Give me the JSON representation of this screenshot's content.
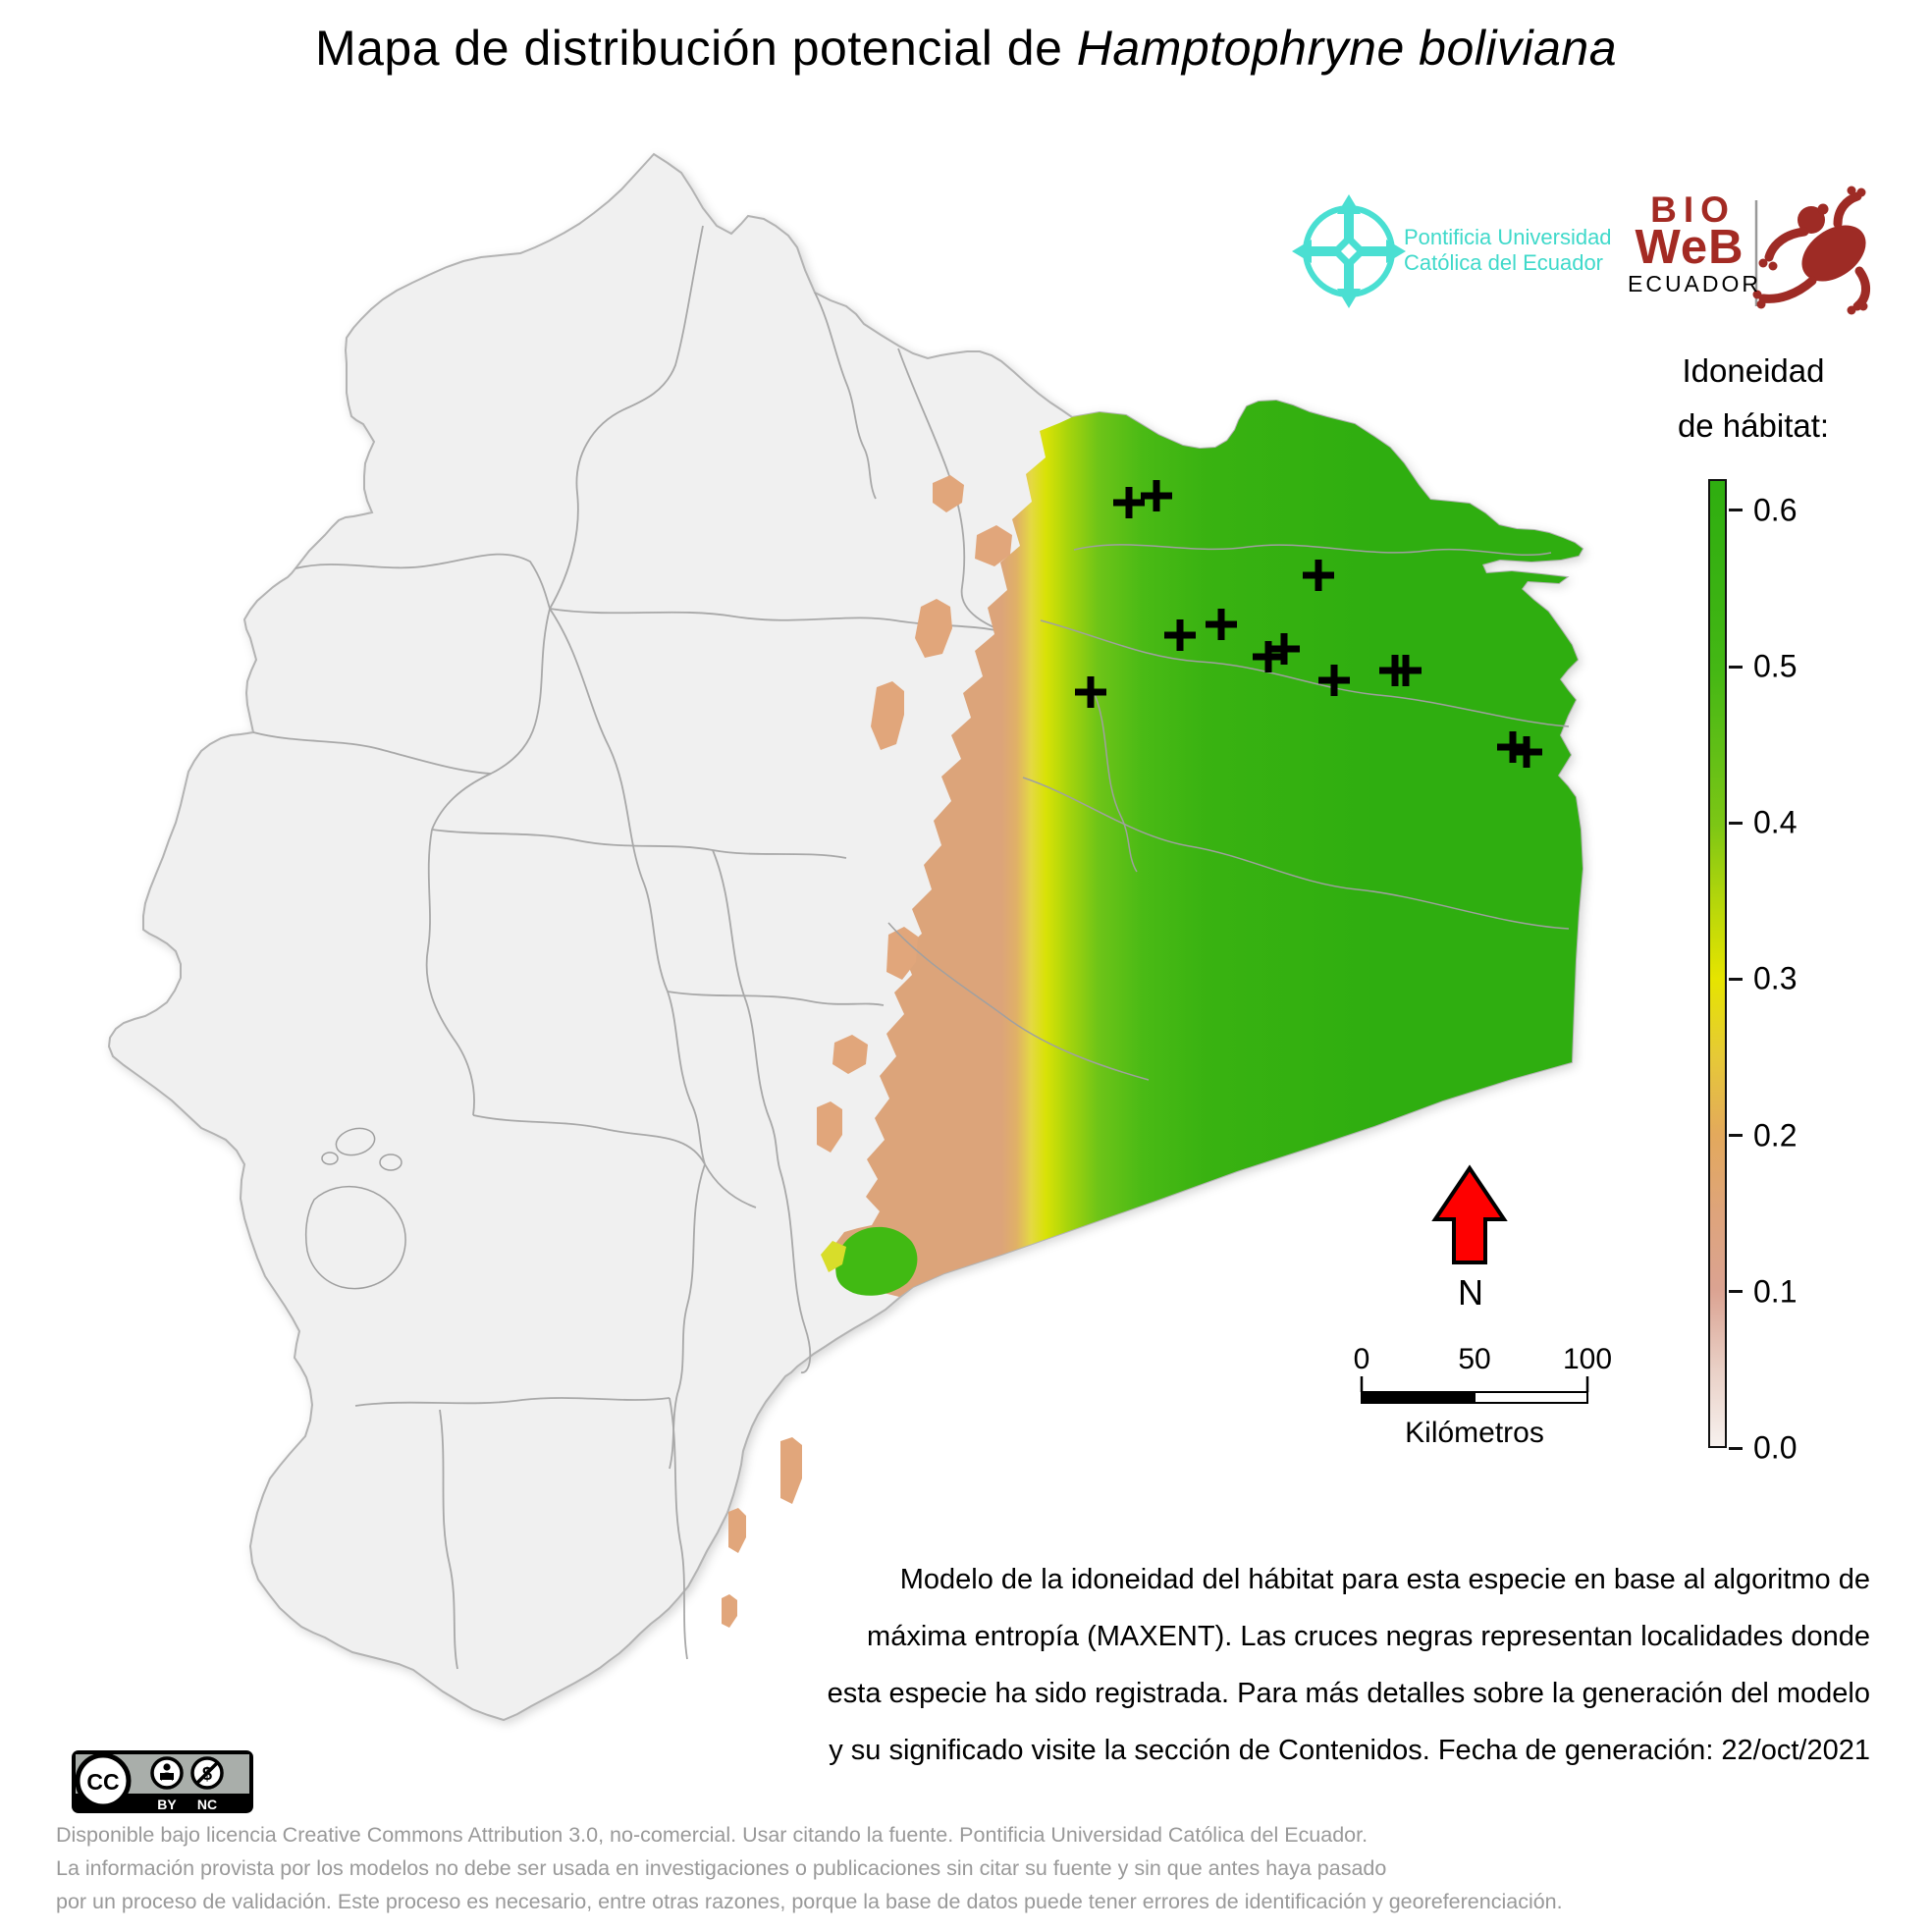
{
  "title": {
    "prefix": "Mapa de distribución potencial de ",
    "species": "Hamptophryne boliviana"
  },
  "logos": {
    "puce": {
      "line1": "Pontificia Universidad",
      "line2": "Católica del Ecuador",
      "color": "#3fd9ca"
    },
    "bioweb": {
      "bio": "BIO",
      "web": "WeB",
      "ecuador": "ECUADOR",
      "brand_color": "#a32a23"
    }
  },
  "legend": {
    "title_line1": "Idoneidad",
    "title_line2": "de hábitat:",
    "ticks": [
      "0.6",
      "0.5",
      "0.4",
      "0.3",
      "0.2",
      "0.1",
      "0.0"
    ],
    "max_value": 0.62,
    "min_value": 0.0,
    "palette": [
      {
        "value": 0.62,
        "color": "#2fae10"
      },
      {
        "value": 0.55,
        "color": "#3ab212"
      },
      {
        "value": 0.5,
        "color": "#44b714"
      },
      {
        "value": 0.45,
        "color": "#5fbe16"
      },
      {
        "value": 0.4,
        "color": "#7cc615"
      },
      {
        "value": 0.35,
        "color": "#b4d60b"
      },
      {
        "value": 0.3,
        "color": "#e6e400"
      },
      {
        "value": 0.25,
        "color": "#e6c937"
      },
      {
        "value": 0.2,
        "color": "#e3a95c"
      },
      {
        "value": 0.15,
        "color": "#dea47b"
      },
      {
        "value": 0.1,
        "color": "#dba392"
      },
      {
        "value": 0.05,
        "color": "#e9cfc5"
      },
      {
        "value": 0.0,
        "color": "#f7f1ee"
      }
    ]
  },
  "north_arrow": {
    "label": "N",
    "color": "#fe0000"
  },
  "scale_bar": {
    "ticks": [
      "0",
      "50",
      "100"
    ],
    "unit_label": "Kilómetros"
  },
  "description": {
    "lines": [
      "Modelo de la idoneidad del hábitat para esta especie en base al algoritmo de",
      "máxima entropía (MAXENT). Las cruces negras representan localidades donde",
      "esta especie ha sido registrada. Para más detalles sobre la generación del modelo",
      "y su significado visite la sección de Contenidos. Fecha de generación: 22/oct/2021"
    ]
  },
  "license": {
    "badge": {
      "cc": "CC",
      "by": "BY",
      "nc": "NC"
    },
    "lines": [
      "Disponible bajo licencia Creative Commons Attribution 3.0, no-comercial. Usar citando la fuente. Pontificia Universidad Católica del Ecuador.",
      "La información provista por los modelos no debe ser usada en investigaciones o publicaciones sin citar su fuente y sin que antes haya pasado",
      "por un proceso de validación. Este proceso es necesario, entre otras razones, porque la base de datos puede tener errores de identificación y georeferenciación."
    ]
  },
  "map": {
    "land_color": "#f0f0f0",
    "border_color": "#b3b3b3",
    "cross_color": "#000000",
    "occurrences": [
      [
        1150,
        512
      ],
      [
        1178,
        505
      ],
      [
        1343,
        586
      ],
      [
        1202,
        647
      ],
      [
        1244,
        636
      ],
      [
        1292,
        669
      ],
      [
        1308,
        661
      ],
      [
        1111,
        705
      ],
      [
        1359,
        693
      ],
      [
        1421,
        683
      ],
      [
        1432,
        683
      ],
      [
        1541,
        761
      ],
      [
        1555,
        766
      ]
    ]
  }
}
